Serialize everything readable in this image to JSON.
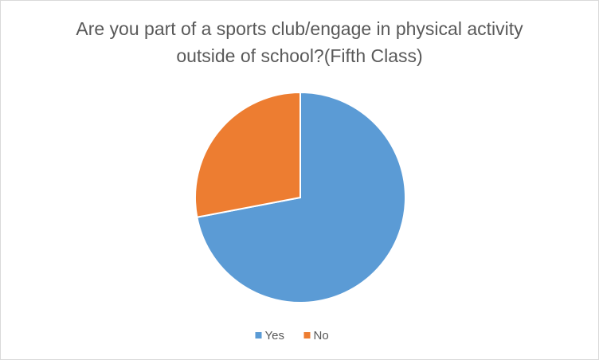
{
  "chart_data": {
    "type": "pie",
    "title": "Are you part of a sports club/engage in physical activity outside of school?(Fifth Class)",
    "categories": [
      "Yes",
      "No"
    ],
    "values": [
      72,
      28
    ],
    "colors": [
      "#5b9bd5",
      "#ed7d31"
    ],
    "legend": "bottom"
  }
}
